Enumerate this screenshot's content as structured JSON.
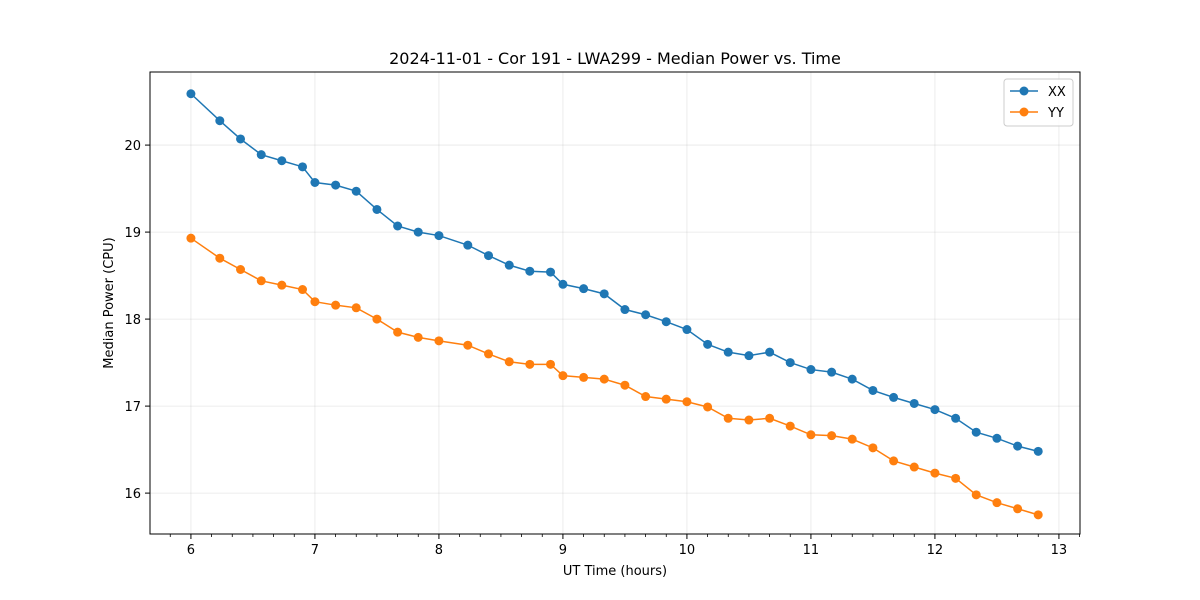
{
  "chart_data": {
    "type": "line",
    "title": "2024-11-01 - Cor 191 - LWA299 - Median Power vs. Time",
    "xlabel": "UT Time (hours)",
    "ylabel": "Median Power (CPU)",
    "xlim": [
      5.67,
      13.17
    ],
    "ylim": [
      15.53,
      20.84
    ],
    "xticks": [
      6,
      7,
      8,
      9,
      10,
      11,
      12,
      13
    ],
    "yticks": [
      16,
      17,
      18,
      19,
      20
    ],
    "grid": true,
    "legend_position": "top-right",
    "x": [
      6.0,
      6.233,
      6.4,
      6.567,
      6.733,
      6.9,
      7.0,
      7.167,
      7.333,
      7.5,
      7.667,
      7.833,
      8.0,
      8.233,
      8.4,
      8.567,
      8.733,
      8.9,
      9.0,
      9.167,
      9.333,
      9.5,
      9.667,
      9.833,
      10.0,
      10.167,
      10.333,
      10.5,
      10.667,
      10.833,
      11.0,
      11.167,
      11.333,
      11.5,
      11.667,
      11.833,
      12.0,
      12.167,
      12.333,
      12.5,
      12.667,
      12.833
    ],
    "series": [
      {
        "name": "XX",
        "color": "#1f77b4",
        "values": [
          20.59,
          20.28,
          20.07,
          19.89,
          19.82,
          19.75,
          19.57,
          19.54,
          19.47,
          19.26,
          19.07,
          19.0,
          18.96,
          18.85,
          18.73,
          18.62,
          18.55,
          18.54,
          18.4,
          18.35,
          18.29,
          18.11,
          18.05,
          17.97,
          17.88,
          17.71,
          17.62,
          17.58,
          17.62,
          17.5,
          17.42,
          17.39,
          17.31,
          17.18,
          17.1,
          17.03,
          16.96,
          16.86,
          16.7,
          16.63,
          16.54,
          16.48
        ]
      },
      {
        "name": "YY",
        "color": "#ff7f0e",
        "values": [
          18.93,
          18.7,
          18.57,
          18.44,
          18.39,
          18.34,
          18.2,
          18.16,
          18.13,
          18.0,
          17.85,
          17.79,
          17.75,
          17.7,
          17.6,
          17.51,
          17.48,
          17.48,
          17.35,
          17.33,
          17.31,
          17.24,
          17.11,
          17.08,
          17.05,
          16.99,
          16.86,
          16.84,
          16.86,
          16.77,
          16.67,
          16.66,
          16.62,
          16.52,
          16.37,
          16.3,
          16.23,
          16.17,
          15.98,
          15.89,
          15.82,
          15.75
        ]
      }
    ]
  }
}
